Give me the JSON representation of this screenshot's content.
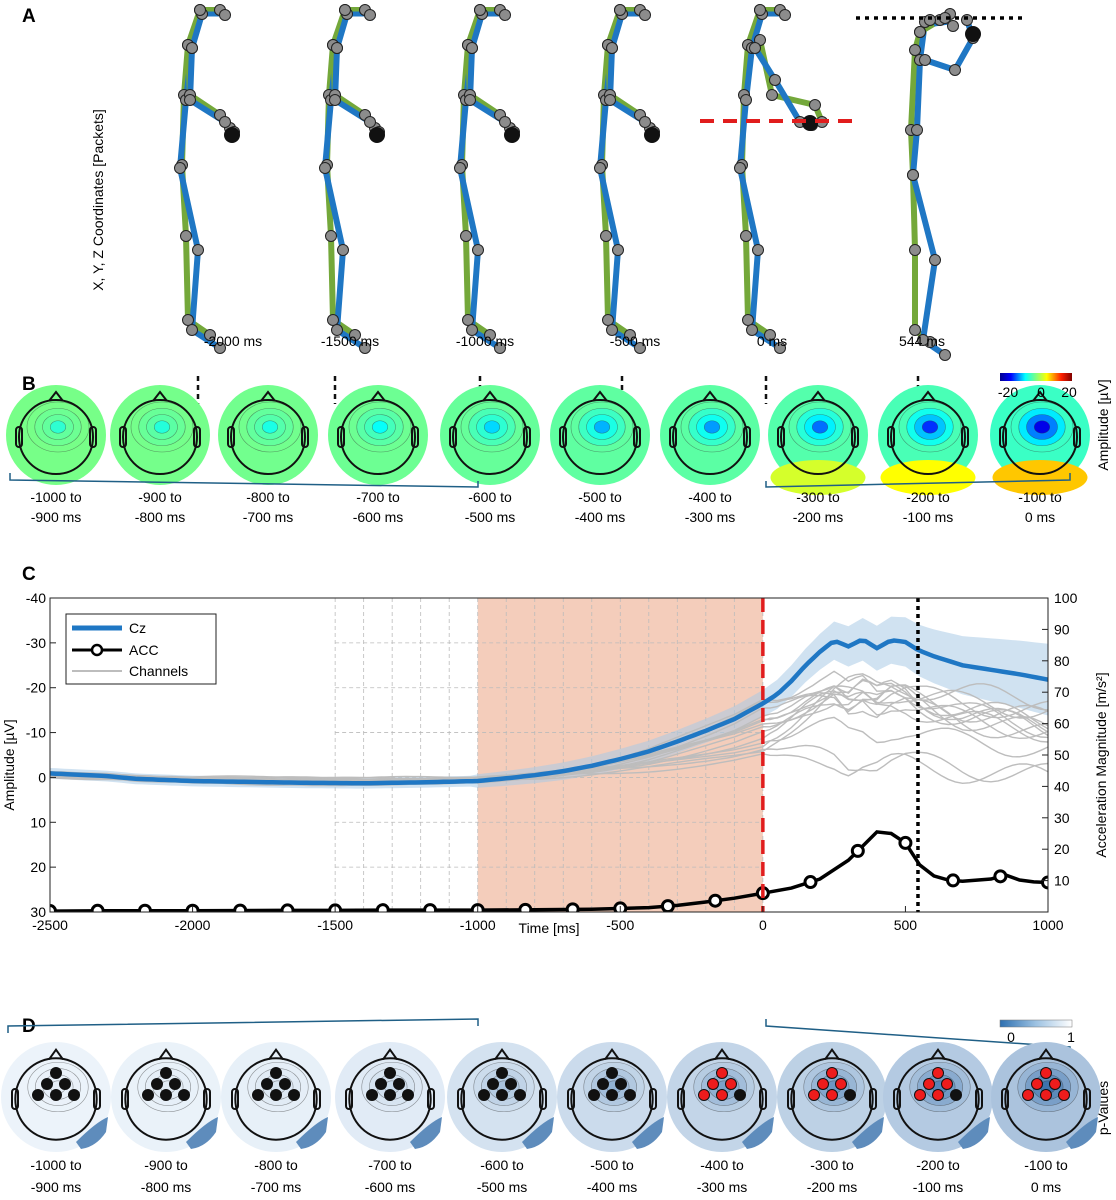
{
  "panels": {
    "a": "A",
    "b": "B",
    "c": "C",
    "d": "D"
  },
  "panel_a": {
    "ylabel": "X, Y, Z Coordinates [Packets]",
    "time_labels": [
      "-2000 ms",
      "-1500 ms",
      "-1000 ms",
      "-500 ms",
      "0 ms",
      "544 ms"
    ],
    "colors": {
      "limb_a": "#74a83a",
      "limb_b": "#1f77c4",
      "joint": "#8c8c8c",
      "ball": "#111111"
    }
  },
  "panel_b": {
    "windows": [
      "-1000 to",
      "-900 to",
      "-800 to",
      "-700 to",
      "-600 to",
      "-500 to",
      "-400 to",
      "-300 to",
      "-200 to",
      "-100 to"
    ],
    "windows_end": [
      "-900 ms",
      "-800 ms",
      "-700 ms",
      "-600 ms",
      "-500 ms",
      "-400 ms",
      "-300 ms",
      "-200 ms",
      "-100 ms",
      "0 ms"
    ],
    "colorbar": {
      "min": "-20",
      "mid": "0",
      "max": "20",
      "label": "Amplitude [µV]"
    },
    "center_level": [
      0.38,
      0.4,
      0.42,
      0.46,
      0.52,
      0.57,
      0.6,
      0.66,
      0.74,
      0.86
    ]
  },
  "panel_d": {
    "windows": [
      "-1000 to",
      "-900 to",
      "-800 to",
      "-700 to",
      "-600 to",
      "-500 to",
      "-400 to",
      "-300 to",
      "-200 to",
      "-100 to"
    ],
    "windows_end": [
      "-900 ms",
      "-800 ms",
      "-700 ms",
      "-600 ms",
      "-500 ms",
      "-400 ms",
      "-300 ms",
      "-200 ms",
      "-100 ms",
      "0 ms"
    ],
    "colorbar": {
      "min": "0",
      "max": "1",
      "label": "p-Values"
    },
    "significant_electrodes": [
      0,
      0,
      0,
      0,
      0,
      0,
      5,
      5,
      5,
      6
    ],
    "significance_level": [
      0.05,
      0.08,
      0.12,
      0.2,
      0.38,
      0.5,
      0.62,
      0.7,
      0.82,
      0.95
    ]
  },
  "chart_data": {
    "type": "line",
    "xlabel": "Time [ms]",
    "ylabel": "Amplitude [µV]",
    "y2label": "Acceleration Magnitude [m/s²]",
    "xlim": [
      -2500,
      1000
    ],
    "ylim": [
      -40,
      30
    ],
    "y_reversed": true,
    "y2lim": [
      0,
      100
    ],
    "xticks": [
      "-2500",
      "-2000",
      "-1500",
      "-1000",
      "-500",
      "0",
      "500",
      "1000"
    ],
    "yticks": [
      "-40",
      "-30",
      "-20",
      "-10",
      "0",
      "10",
      "20",
      "30"
    ],
    "y2ticks": [
      "10",
      "20",
      "30",
      "40",
      "50",
      "60",
      "70",
      "80",
      "90",
      "100"
    ],
    "shaded_window": [
      -1000,
      0
    ],
    "event_line_x": 0,
    "impact_line_x": 544,
    "legend": [
      "Cz",
      "ACC",
      "Channels"
    ],
    "colors": {
      "cz": "#1f77c4",
      "cz_band": "#a9cbe6",
      "acc": "#000000",
      "channels": "#bdbdbd",
      "shade": "#f4cdbb",
      "event": "#e11d1d"
    },
    "series": [
      {
        "name": "Cz",
        "x": [
          -2500,
          -2400,
          -2300,
          -2200,
          -2000,
          -1800,
          -1600,
          -1400,
          -1200,
          -1000,
          -900,
          -800,
          -700,
          -600,
          -500,
          -400,
          -300,
          -200,
          -100,
          0,
          50,
          100,
          150,
          200,
          250,
          300,
          350,
          400,
          450,
          500,
          544,
          600,
          700,
          800,
          900,
          1000
        ],
        "y": [
          -0.9,
          -0.6,
          -0.3,
          0.3,
          0.8,
          1,
          1.2,
          1.3,
          1.1,
          0.8,
          0.2,
          -0.5,
          -1.4,
          -2.6,
          -4.1,
          -5.8,
          -8,
          -10.4,
          -13,
          -16.5,
          -18.5,
          -21.5,
          -25,
          -28,
          -30.5,
          -29.2,
          -30.8,
          -28.8,
          -30.6,
          -30.2,
          -28.4,
          -27,
          -25,
          -24,
          -23,
          -21.8
        ]
      },
      {
        "name": "ACC",
        "x": [
          -2500,
          -2300,
          -2000,
          -1700,
          -1500,
          -1300,
          -1000,
          -800,
          -600,
          -400,
          -300,
          -200,
          -100,
          0,
          100,
          200,
          300,
          350,
          400,
          450,
          500,
          550,
          600,
          650,
          700,
          800,
          850,
          900,
          950,
          1000
        ],
        "y": [
          0.3,
          0.4,
          0.4,
          0.5,
          0.5,
          0.6,
          0.6,
          0.7,
          0.9,
          1.4,
          2.1,
          3.2,
          4.4,
          6,
          7.6,
          10.5,
          16.5,
          21,
          25.5,
          25,
          22,
          15,
          11.5,
          10.2,
          9.8,
          10.5,
          11.8,
          10.2,
          9.6,
          9.4
        ]
      }
    ]
  }
}
